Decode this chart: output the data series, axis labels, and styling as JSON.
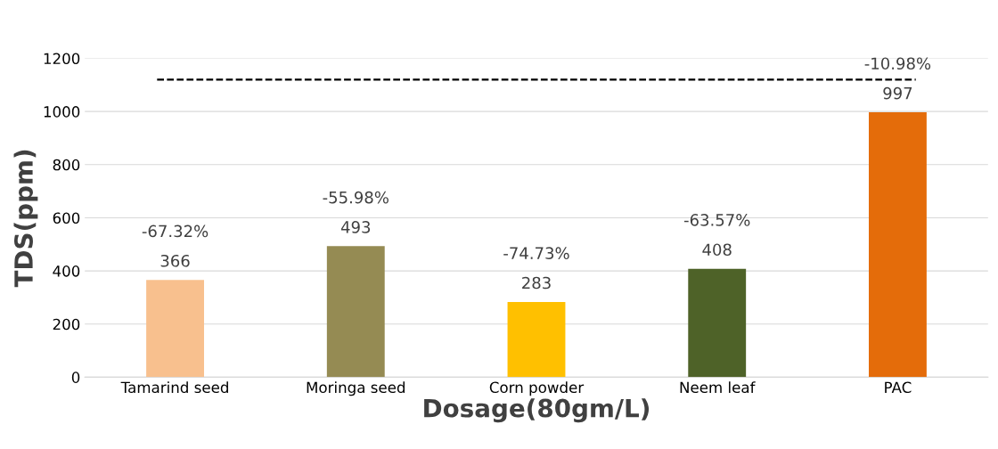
{
  "chart_data": {
    "type": "bar",
    "xlabel": "Dosage(80gm/L)",
    "ylabel": "TDS(ppm)",
    "categories": [
      "Tamarind seed",
      "Moringa seed",
      "Corn powder",
      "Neem leaf",
      "PAC"
    ],
    "values": [
      366,
      493,
      283,
      408,
      997
    ],
    "colors": [
      "#f8c08e",
      "#958b53",
      "#ffc000",
      "#4e6228",
      "#e46c0a"
    ],
    "ylim": [
      0,
      1200
    ],
    "yticks": [
      0,
      200,
      400,
      600,
      800,
      1000,
      1200
    ],
    "grid": "y",
    "data_labels": true,
    "annotations": [
      {
        "text": "-67.32%",
        "x": "Tamarind seed",
        "y": 366
      },
      {
        "text": "-55.98%",
        "x": "Moringa seed",
        "y": 493
      },
      {
        "text": "-74.73%",
        "x": "Corn powder",
        "y": 283
      },
      {
        "text": "-63.57%",
        "x": "Neem leaf",
        "y": 408
      },
      {
        "text": "-10.98%",
        "x": "PAC",
        "y": 997
      }
    ],
    "ref_lines": [
      {
        "axis": "y",
        "value": 1120,
        "color": "#000000",
        "line_style": "dashed"
      }
    ]
  }
}
